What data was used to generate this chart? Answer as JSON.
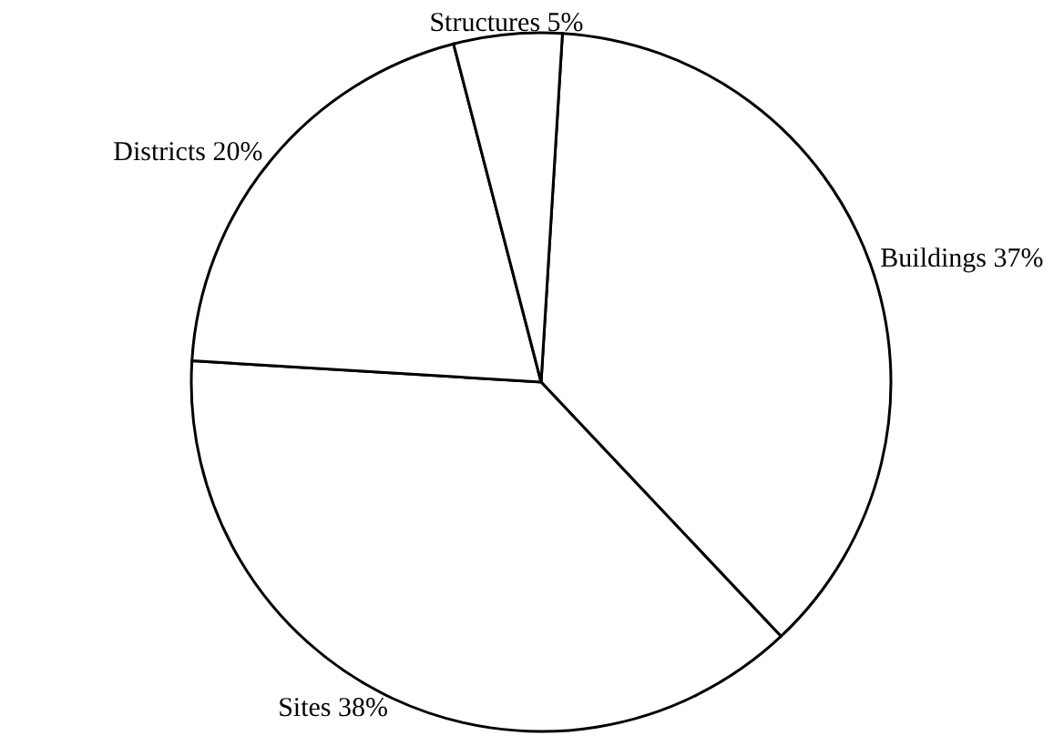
{
  "chart_data": {
    "type": "pie",
    "categories": [
      "Buildings",
      "Sites",
      "Districts",
      "Structures"
    ],
    "values": [
      37,
      38,
      20,
      5
    ],
    "value_labels": [
      "37%",
      "38%",
      "20%",
      "5%"
    ],
    "colors": [
      "#ffffff",
      "#ffffff",
      "#ffffff",
      "#ffffff"
    ],
    "legend": false
  }
}
